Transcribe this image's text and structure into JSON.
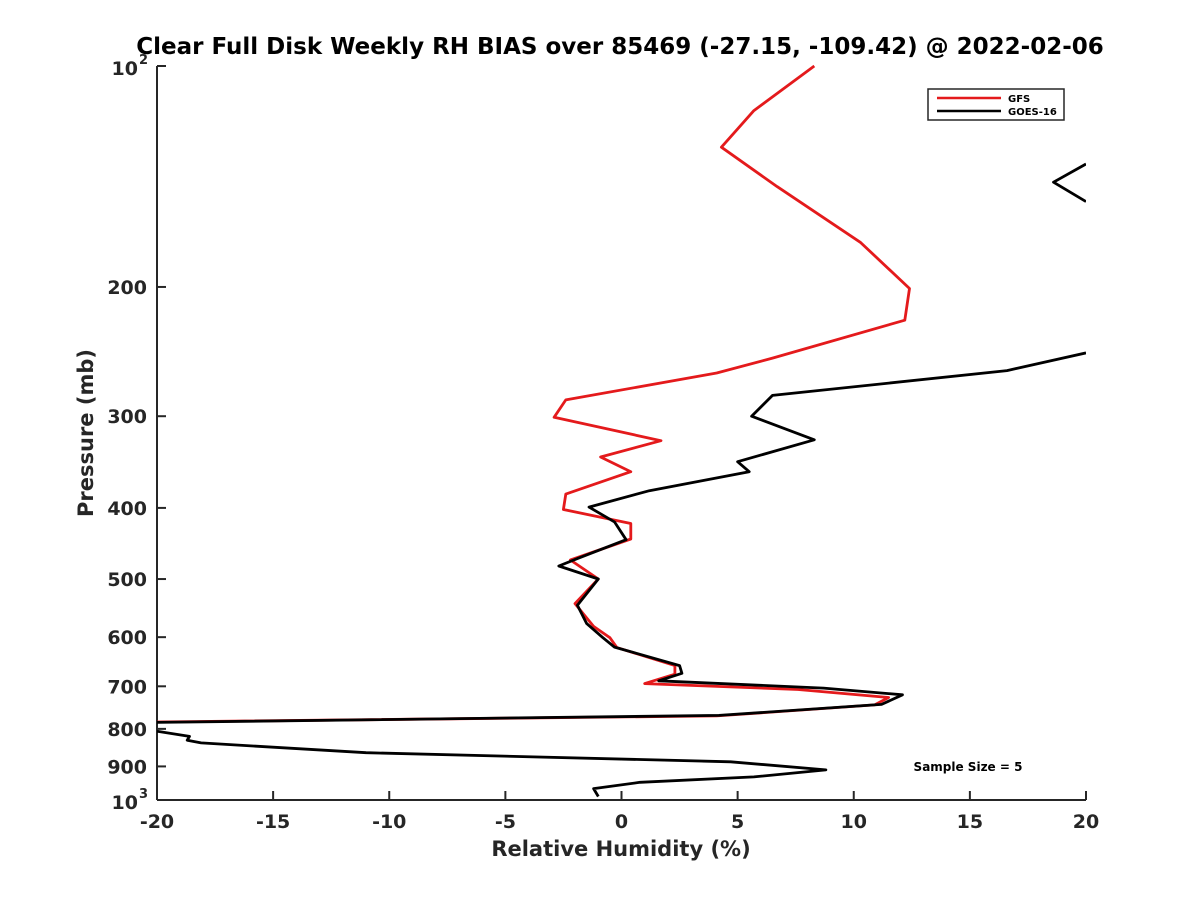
{
  "chart_data": {
    "type": "line",
    "title": "Clear Full Disk Weekly RH BIAS over 85469 (-27.15, -109.42) @ 2022-02-06",
    "xlabel": "Relative Humidity (%)",
    "ylabel": "Pressure (mb)",
    "xlim": [
      -20,
      20
    ],
    "ylim": [
      100,
      1000
    ],
    "yscale": "log",
    "y_reversed": true,
    "x_ticks": [
      "-20",
      "-15",
      "-10",
      "-5",
      "0",
      "5",
      "10",
      "15",
      "20"
    ],
    "y_ticks": [
      {
        "value": 100,
        "label": "10",
        "exp": "2"
      },
      {
        "value": 200,
        "label": "200"
      },
      {
        "value": 300,
        "label": "300"
      },
      {
        "value": 400,
        "label": "400"
      },
      {
        "value": 500,
        "label": "500"
      },
      {
        "value": 600,
        "label": "600"
      },
      {
        "value": 700,
        "label": "700"
      },
      {
        "value": 800,
        "label": "800"
      },
      {
        "value": 900,
        "label": "900"
      },
      {
        "value": 1000,
        "label": "10",
        "exp": "3"
      }
    ],
    "grid": false,
    "legend_position": "top-right",
    "annotation": "Sample Size = 5",
    "series": [
      {
        "name": "GFS",
        "color": "#e41a1c",
        "points": [
          [
            8.3,
            100
          ],
          [
            5.7,
            115
          ],
          [
            4.3,
            129
          ],
          [
            6.7,
            146
          ],
          [
            10.3,
            174
          ],
          [
            12.4,
            201
          ],
          [
            12.2,
            222
          ],
          [
            6.5,
            250
          ],
          [
            4.1,
            262
          ],
          [
            -2.4,
            285
          ],
          [
            -2.9,
            301
          ],
          [
            1.7,
            324
          ],
          [
            -0.9,
            341
          ],
          [
            0.4,
            357
          ],
          [
            -2.4,
            383
          ],
          [
            -2.5,
            402
          ],
          [
            0.4,
            420
          ],
          [
            0.4,
            441
          ],
          [
            -2.2,
            471
          ],
          [
            -1.0,
            500
          ],
          [
            -2.0,
            540
          ],
          [
            -1.2,
            580
          ],
          [
            -0.5,
            601
          ],
          [
            -0.2,
            620
          ],
          [
            2.3,
            656
          ],
          [
            2.3,
            674
          ],
          [
            1.0,
            694
          ],
          [
            7.6,
            707
          ],
          [
            11.5,
            725
          ],
          [
            10.9,
            742
          ],
          [
            4.1,
            768
          ],
          [
            -20.0,
            783
          ]
        ]
      },
      {
        "name": "GOES-16",
        "color": "#000000",
        "points": [
          [
            20.0,
            136
          ],
          [
            18.6,
            144
          ],
          [
            20.0,
            153
          ],
          [
            null,
            null
          ],
          [
            20.0,
            246
          ],
          [
            16.6,
            260
          ],
          [
            6.5,
            281
          ],
          [
            5.6,
            300
          ],
          [
            8.3,
            323
          ],
          [
            5.0,
            346
          ],
          [
            5.5,
            357
          ],
          [
            1.2,
            379
          ],
          [
            -1.4,
            399
          ],
          [
            -0.3,
            418
          ],
          [
            0.2,
            442
          ],
          [
            -1.9,
            469
          ],
          [
            -2.7,
            480
          ],
          [
            -1.0,
            500
          ],
          [
            -1.9,
            543
          ],
          [
            -1.5,
            575
          ],
          [
            -0.8,
            601
          ],
          [
            -0.3,
            619
          ],
          [
            2.5,
            656
          ],
          [
            2.6,
            672
          ],
          [
            1.6,
            688
          ],
          [
            8.7,
            704
          ],
          [
            12.1,
            719
          ],
          [
            11.2,
            741
          ],
          [
            4.2,
            767
          ],
          [
            -20.0,
            784
          ],
          [
            null,
            null
          ],
          [
            -20.0,
            806
          ],
          [
            -18.6,
            819
          ],
          [
            -18.7,
            829
          ],
          [
            -18.1,
            836
          ],
          [
            -11.0,
            862
          ],
          [
            4.7,
            887
          ],
          [
            8.8,
            910
          ],
          [
            5.7,
            930
          ],
          [
            0.8,
            946
          ],
          [
            -1.2,
            965
          ],
          [
            -1.0,
            989
          ]
        ]
      }
    ]
  }
}
